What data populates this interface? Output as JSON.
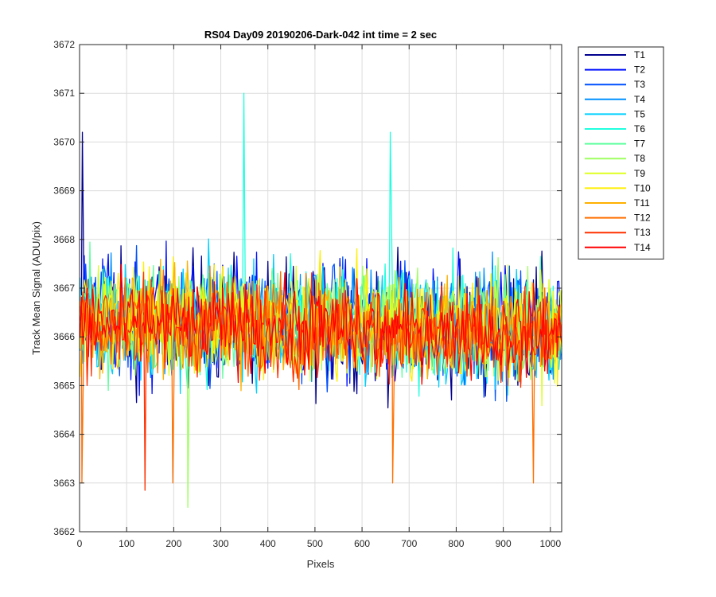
{
  "chart_data": {
    "type": "line",
    "title": "RS04 Day09 20190206-Dark-042 int time = 2 sec",
    "xlabel": "Pixels",
    "ylabel": "Track Mean Signal (ADU/pix)",
    "xlim": [
      0,
      1024
    ],
    "ylim": [
      3662,
      3672
    ],
    "xticks": [
      0,
      100,
      200,
      300,
      400,
      500,
      600,
      700,
      800,
      900,
      1000
    ],
    "yticks": [
      3662,
      3663,
      3664,
      3665,
      3666,
      3667,
      3668,
      3669,
      3670,
      3671,
      3672
    ],
    "grid": true,
    "legend_position": "outside-right",
    "x_start": 1,
    "x_end": 1024,
    "x_step": 3,
    "series": [
      {
        "name": "T1",
        "color": "#00008f",
        "mean": 3666.4,
        "spread": 1.25
      },
      {
        "name": "T2",
        "color": "#0010ff",
        "mean": 3666.4,
        "spread": 1.2
      },
      {
        "name": "T3",
        "color": "#0050ff",
        "mean": 3666.4,
        "spread": 1.15
      },
      {
        "name": "T4",
        "color": "#0090ff",
        "mean": 3666.4,
        "spread": 1.15
      },
      {
        "name": "T5",
        "color": "#00d0ff",
        "mean": 3666.4,
        "spread": 1.1
      },
      {
        "name": "T6",
        "color": "#20ffdf",
        "mean": 3666.4,
        "spread": 1.1
      },
      {
        "name": "T7",
        "color": "#60ff9f",
        "mean": 3666.4,
        "spread": 1.05
      },
      {
        "name": "T8",
        "color": "#9fff60",
        "mean": 3666.4,
        "spread": 1.05
      },
      {
        "name": "T9",
        "color": "#dfff20",
        "mean": 3666.4,
        "spread": 1.0
      },
      {
        "name": "T10",
        "color": "#ffef00",
        "mean": 3666.4,
        "spread": 1.0
      },
      {
        "name": "T11",
        "color": "#ffb000",
        "mean": 3666.3,
        "spread": 0.95
      },
      {
        "name": "T12",
        "color": "#ff7000",
        "mean": 3666.3,
        "spread": 0.95
      },
      {
        "name": "T13",
        "color": "#ff3000",
        "mean": 3666.3,
        "spread": 0.9
      },
      {
        "name": "T14",
        "color": "#ff0000",
        "mean": 3666.3,
        "spread": 0.85
      }
    ],
    "annotated_extremes": [
      {
        "series": "T6",
        "x": 349,
        "y": 3671.0
      },
      {
        "series": "T1",
        "x": 6,
        "y": 3670.2
      },
      {
        "series": "T6",
        "x": 660,
        "y": 3670.2
      },
      {
        "series": "T8",
        "x": 230,
        "y": 3662.5
      },
      {
        "series": "T13",
        "x": 139,
        "y": 3662.85
      },
      {
        "series": "T12",
        "x": 5,
        "y": 3663.0
      },
      {
        "series": "T12",
        "x": 198,
        "y": 3663.0
      },
      {
        "series": "T12",
        "x": 665,
        "y": 3663.0
      },
      {
        "series": "T12",
        "x": 964,
        "y": 3663.0
      }
    ]
  }
}
